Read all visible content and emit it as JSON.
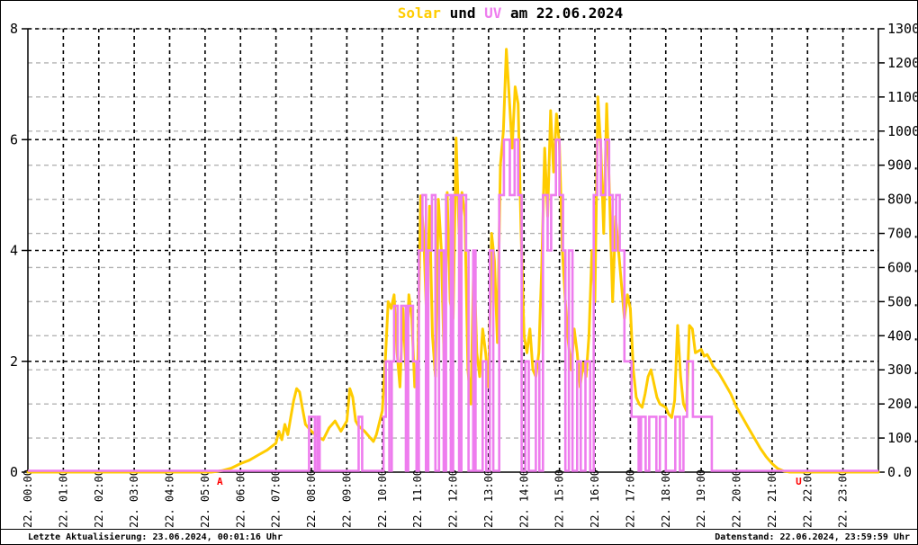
{
  "title": {
    "full": "Solar und UV am 22.06.2024",
    "parts": [
      {
        "text": "Solar",
        "color": "#FFCC00"
      },
      {
        "text": " und ",
        "color": "#000000"
      },
      {
        "text": "UV",
        "color": "#EE7DEE"
      },
      {
        "text": " am 22.06.2024",
        "color": "#000000"
      }
    ]
  },
  "footer": {
    "left": "Letzte Aktualisierung: 23.06.2024, 00:01:16 Uhr",
    "right": "Datenstand: 22.06.2024, 23:59:59 Uhr"
  },
  "chart_data": {
    "type": "line",
    "title": "Solar und UV am 22.06.2024",
    "grid": {
      "vertical": "hourly black dashed",
      "horizontal_major": "black dashed at left-axis 2,4,6,8",
      "horizontal_minor": "gray dashed at right-axis every 100"
    },
    "x_axis": {
      "range_minutes": [
        0,
        1440
      ],
      "labels": [
        "22. 00:00",
        "22. 01:00",
        "22. 02:00",
        "22. 03:00",
        "22. 04:00",
        "22. 05:00",
        "22. 06:00",
        "22. 07:00",
        "22. 08:00",
        "22. 09:00",
        "22. 10:00",
        "22. 11:00",
        "22. 12:00",
        "22. 13:00",
        "22. 14:00",
        "22. 15:00",
        "22. 16:00",
        "22. 17:00",
        "22. 18:00",
        "22. 19:00",
        "22. 20:00",
        "22. 21:00",
        "22. 22:00",
        "22. 23:00"
      ]
    },
    "y_left": {
      "series": "UV",
      "min": 0,
      "max": 8,
      "ticks": [
        "0",
        "2",
        "4",
        "6",
        "8"
      ]
    },
    "y_right": {
      "series": "Solar",
      "min": 0,
      "max": 1300,
      "tick_step": 100,
      "labels": [
        "0.0",
        "100.0",
        "200.0",
        "300.0",
        "400.0",
        "500.0",
        "600.0",
        "700.0",
        "800.0",
        "900.0",
        "1000.0",
        "1100.0",
        "1200.0",
        "1300.0"
      ]
    },
    "markers": [
      {
        "label": "A",
        "minutes": 325,
        "color": "#FF0000"
      },
      {
        "label": "U",
        "minutes": 1305,
        "color": "#FF0000"
      }
    ],
    "series": [
      {
        "name": "Solar",
        "color": "#FFCC00",
        "axis": "right",
        "style": "line",
        "points": [
          [
            0,
            0
          ],
          [
            310,
            0
          ],
          [
            315,
            1
          ],
          [
            320,
            2
          ],
          [
            330,
            5
          ],
          [
            345,
            12
          ],
          [
            360,
            25
          ],
          [
            375,
            35
          ],
          [
            390,
            50
          ],
          [
            405,
            65
          ],
          [
            420,
            85
          ],
          [
            425,
            120
          ],
          [
            430,
            95
          ],
          [
            435,
            140
          ],
          [
            440,
            110
          ],
          [
            445,
            160
          ],
          [
            450,
            210
          ],
          [
            455,
            245
          ],
          [
            460,
            235
          ],
          [
            465,
            185
          ],
          [
            470,
            140
          ],
          [
            480,
            120
          ],
          [
            490,
            105
          ],
          [
            500,
            95
          ],
          [
            510,
            130
          ],
          [
            520,
            150
          ],
          [
            525,
            135
          ],
          [
            530,
            120
          ],
          [
            540,
            150
          ],
          [
            545,
            245
          ],
          [
            550,
            220
          ],
          [
            555,
            150
          ],
          [
            560,
            135
          ],
          [
            570,
            120
          ],
          [
            580,
            100
          ],
          [
            585,
            90
          ],
          [
            590,
            110
          ],
          [
            600,
            180
          ],
          [
            605,
            320
          ],
          [
            610,
            500
          ],
          [
            615,
            480
          ],
          [
            620,
            520
          ],
          [
            625,
            350
          ],
          [
            630,
            250
          ],
          [
            635,
            480
          ],
          [
            640,
            300
          ],
          [
            645,
            520
          ],
          [
            650,
            450
          ],
          [
            655,
            250
          ],
          [
            660,
            300
          ],
          [
            665,
            810
          ],
          [
            670,
            700
          ],
          [
            675,
            450
          ],
          [
            680,
            780
          ],
          [
            685,
            400
          ],
          [
            690,
            280
          ],
          [
            695,
            800
          ],
          [
            700,
            650
          ],
          [
            705,
            300
          ],
          [
            710,
            820
          ],
          [
            715,
            500
          ],
          [
            720,
            450
          ],
          [
            725,
            980
          ],
          [
            730,
            700
          ],
          [
            735,
            820
          ],
          [
            740,
            750
          ],
          [
            745,
            300
          ],
          [
            750,
            200
          ],
          [
            755,
            640
          ],
          [
            760,
            350
          ],
          [
            765,
            280
          ],
          [
            770,
            420
          ],
          [
            775,
            350
          ],
          [
            780,
            250
          ],
          [
            785,
            700
          ],
          [
            790,
            620
          ],
          [
            795,
            380
          ],
          [
            800,
            900
          ],
          [
            805,
            1000
          ],
          [
            810,
            1240
          ],
          [
            815,
            1100
          ],
          [
            820,
            950
          ],
          [
            825,
            1130
          ],
          [
            830,
            1080
          ],
          [
            835,
            700
          ],
          [
            840,
            400
          ],
          [
            845,
            350
          ],
          [
            850,
            420
          ],
          [
            855,
            300
          ],
          [
            860,
            280
          ],
          [
            865,
            350
          ],
          [
            870,
            600
          ],
          [
            875,
            950
          ],
          [
            880,
            750
          ],
          [
            885,
            1060
          ],
          [
            890,
            880
          ],
          [
            895,
            1050
          ],
          [
            900,
            960
          ],
          [
            905,
            650
          ],
          [
            910,
            500
          ],
          [
            915,
            380
          ],
          [
            920,
            300
          ],
          [
            925,
            420
          ],
          [
            930,
            350
          ],
          [
            935,
            250
          ],
          [
            940,
            320
          ],
          [
            945,
            280
          ],
          [
            950,
            400
          ],
          [
            955,
            650
          ],
          [
            960,
            500
          ],
          [
            965,
            1100
          ],
          [
            970,
            950
          ],
          [
            975,
            700
          ],
          [
            980,
            1080
          ],
          [
            985,
            800
          ],
          [
            990,
            500
          ],
          [
            995,
            750
          ],
          [
            1000,
            650
          ],
          [
            1005,
            550
          ],
          [
            1010,
            450
          ],
          [
            1015,
            520
          ],
          [
            1020,
            480
          ],
          [
            1025,
            300
          ],
          [
            1030,
            220
          ],
          [
            1035,
            200
          ],
          [
            1040,
            190
          ],
          [
            1045,
            230
          ],
          [
            1050,
            280
          ],
          [
            1055,
            300
          ],
          [
            1060,
            260
          ],
          [
            1065,
            220
          ],
          [
            1070,
            200
          ],
          [
            1080,
            190
          ],
          [
            1085,
            170
          ],
          [
            1090,
            160
          ],
          [
            1095,
            210
          ],
          [
            1100,
            430
          ],
          [
            1105,
            280
          ],
          [
            1110,
            200
          ],
          [
            1115,
            180
          ],
          [
            1120,
            430
          ],
          [
            1125,
            420
          ],
          [
            1130,
            350
          ],
          [
            1140,
            360
          ],
          [
            1145,
            340
          ],
          [
            1150,
            345
          ],
          [
            1155,
            330
          ],
          [
            1160,
            310
          ],
          [
            1170,
            290
          ],
          [
            1180,
            260
          ],
          [
            1190,
            230
          ],
          [
            1200,
            190
          ],
          [
            1210,
            160
          ],
          [
            1220,
            130
          ],
          [
            1230,
            100
          ],
          [
            1240,
            70
          ],
          [
            1250,
            45
          ],
          [
            1260,
            25
          ],
          [
            1270,
            10
          ],
          [
            1280,
            3
          ],
          [
            1290,
            0
          ],
          [
            1440,
            0
          ]
        ]
      },
      {
        "name": "UV",
        "color": "#EE7DEE",
        "axis": "left",
        "style": "step",
        "points": [
          [
            0,
            0
          ],
          [
            476,
            1
          ],
          [
            486,
            0
          ],
          [
            490,
            1
          ],
          [
            494,
            0
          ],
          [
            560,
            1
          ],
          [
            566,
            0
          ],
          [
            602,
            1
          ],
          [
            606,
            2
          ],
          [
            612,
            0
          ],
          [
            616,
            2
          ],
          [
            620,
            3
          ],
          [
            626,
            2
          ],
          [
            632,
            3
          ],
          [
            640,
            0
          ],
          [
            644,
            3
          ],
          [
            652,
            2
          ],
          [
            658,
            0
          ],
          [
            662,
            4
          ],
          [
            668,
            5
          ],
          [
            674,
            0
          ],
          [
            678,
            4
          ],
          [
            684,
            5
          ],
          [
            690,
            0
          ],
          [
            696,
            4
          ],
          [
            704,
            0
          ],
          [
            708,
            5
          ],
          [
            716,
            0
          ],
          [
            720,
            5
          ],
          [
            730,
            0
          ],
          [
            734,
            5
          ],
          [
            742,
            4
          ],
          [
            746,
            0
          ],
          [
            754,
            4
          ],
          [
            758,
            0
          ],
          [
            770,
            2
          ],
          [
            776,
            0
          ],
          [
            782,
            4
          ],
          [
            788,
            0
          ],
          [
            798,
            5
          ],
          [
            806,
            6
          ],
          [
            816,
            5
          ],
          [
            824,
            6
          ],
          [
            830,
            5
          ],
          [
            836,
            0
          ],
          [
            842,
            2
          ],
          [
            848,
            0
          ],
          [
            860,
            2
          ],
          [
            866,
            0
          ],
          [
            872,
            5
          ],
          [
            880,
            4
          ],
          [
            886,
            5
          ],
          [
            894,
            6
          ],
          [
            900,
            5
          ],
          [
            906,
            4
          ],
          [
            910,
            0
          ],
          [
            916,
            4
          ],
          [
            922,
            0
          ],
          [
            930,
            2
          ],
          [
            936,
            0
          ],
          [
            944,
            2
          ],
          [
            952,
            0
          ],
          [
            958,
            5
          ],
          [
            964,
            6
          ],
          [
            970,
            5
          ],
          [
            978,
            6
          ],
          [
            984,
            5
          ],
          [
            990,
            4
          ],
          [
            996,
            5
          ],
          [
            1002,
            4
          ],
          [
            1010,
            2
          ],
          [
            1022,
            1
          ],
          [
            1034,
            0
          ],
          [
            1038,
            1
          ],
          [
            1046,
            0
          ],
          [
            1052,
            1
          ],
          [
            1064,
            0
          ],
          [
            1070,
            1
          ],
          [
            1080,
            0
          ],
          [
            1096,
            1
          ],
          [
            1104,
            0
          ],
          [
            1110,
            1
          ],
          [
            1116,
            2
          ],
          [
            1126,
            1
          ],
          [
            1158,
            0
          ],
          [
            1440,
            0
          ]
        ]
      }
    ]
  }
}
